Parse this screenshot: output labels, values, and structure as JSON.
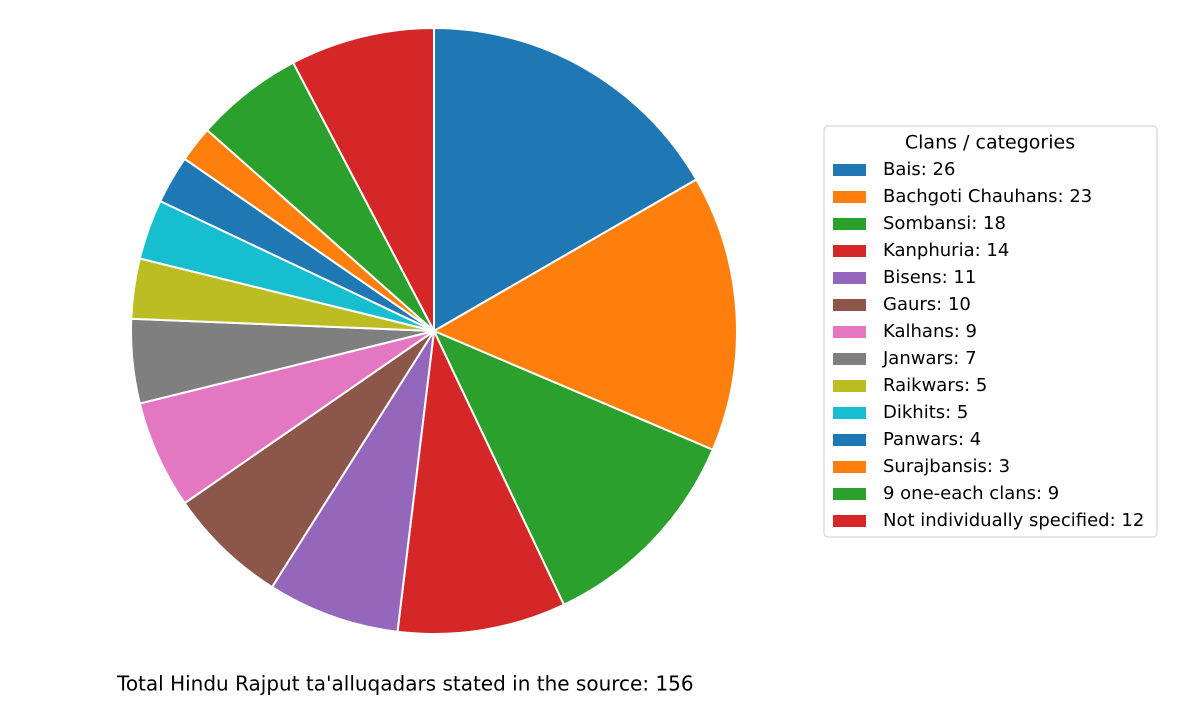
{
  "chart_data": {
    "type": "pie",
    "legend_title": "Clans / categories",
    "legend_position": "right",
    "annotation": "Total Hindu Rajput ta'alluqadars stated in the source: 156",
    "categories": [
      "Bais: 26",
      "Bachgoti Chauhans: 23",
      "Sombansi: 18",
      "Kanphuria: 14",
      "Bisens: 11",
      "Gaurs: 10",
      "Kalhans: 9",
      "Janwars: 7",
      "Raikwars: 5",
      "Dikhits: 5",
      "Panwars: 4",
      "Surajbansis: 3",
      "9 one-each clans: 9",
      "Not individually specified: 12"
    ],
    "values": [
      26,
      23,
      18,
      14,
      11,
      10,
      9,
      7,
      5,
      5,
      4,
      3,
      9,
      12
    ],
    "colors": [
      "#1f77b4",
      "#ff7f0e",
      "#2ca02c",
      "#d62728",
      "#9467bd",
      "#8c564b",
      "#e377c2",
      "#7f7f7f",
      "#bcbd22",
      "#17becf",
      "#1f77b4",
      "#ff7f0e",
      "#2ca02c",
      "#d62728"
    ],
    "start_angle": 90,
    "clockwise": true
  }
}
